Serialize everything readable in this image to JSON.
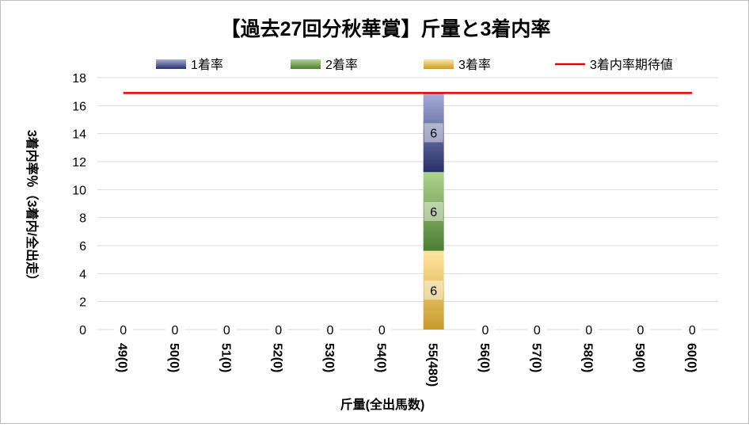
{
  "chart_data": {
    "type": "bar",
    "title": "【過去27回分秋華賞】斤量と3着内率",
    "xlabel": "斤量(全出馬数)",
    "ylabel": "3着内率％（3着内/全出走）",
    "ylim": [
      0,
      18
    ],
    "yticks": [
      "0",
      "2",
      "4",
      "6",
      "8",
      "10",
      "12",
      "14",
      "16",
      "18"
    ],
    "categories": [
      "49(0)",
      "50(0)",
      "51(0)",
      "52(0)",
      "53(0)",
      "54(0)",
      "55(480)",
      "56(0)",
      "57(0)",
      "58(0)",
      "59(0)",
      "60(0)"
    ],
    "series": [
      {
        "name": "3着率",
        "values": [
          0,
          0,
          0,
          0,
          0,
          0,
          5.625,
          0,
          0,
          0,
          0,
          0
        ],
        "labels": [
          "0",
          "0",
          "0",
          "0",
          "0",
          "0",
          "6",
          "0",
          "0",
          "0",
          "0",
          "0"
        ],
        "color": "#c9a13c"
      },
      {
        "name": "2着率",
        "values": [
          0,
          0,
          0,
          0,
          0,
          0,
          5.625,
          0,
          0,
          0,
          0,
          0
        ],
        "labels": [
          "",
          "",
          "",
          "",
          "",
          "",
          "6",
          "",
          "",
          "",
          "",
          ""
        ],
        "color": "#6a9a4a"
      },
      {
        "name": "1着率",
        "values": [
          0,
          0,
          0,
          0,
          0,
          0,
          5.625,
          0,
          0,
          0,
          0,
          0
        ],
        "labels": [
          "",
          "",
          "",
          "",
          "",
          "",
          "6",
          "",
          "",
          "",
          "",
          ""
        ],
        "color": "#3c4a8a"
      }
    ],
    "reference_line": {
      "name": "3着内率期待値",
      "value": 16.9,
      "color": "#e00000"
    },
    "grid": true,
    "legend": "top"
  }
}
